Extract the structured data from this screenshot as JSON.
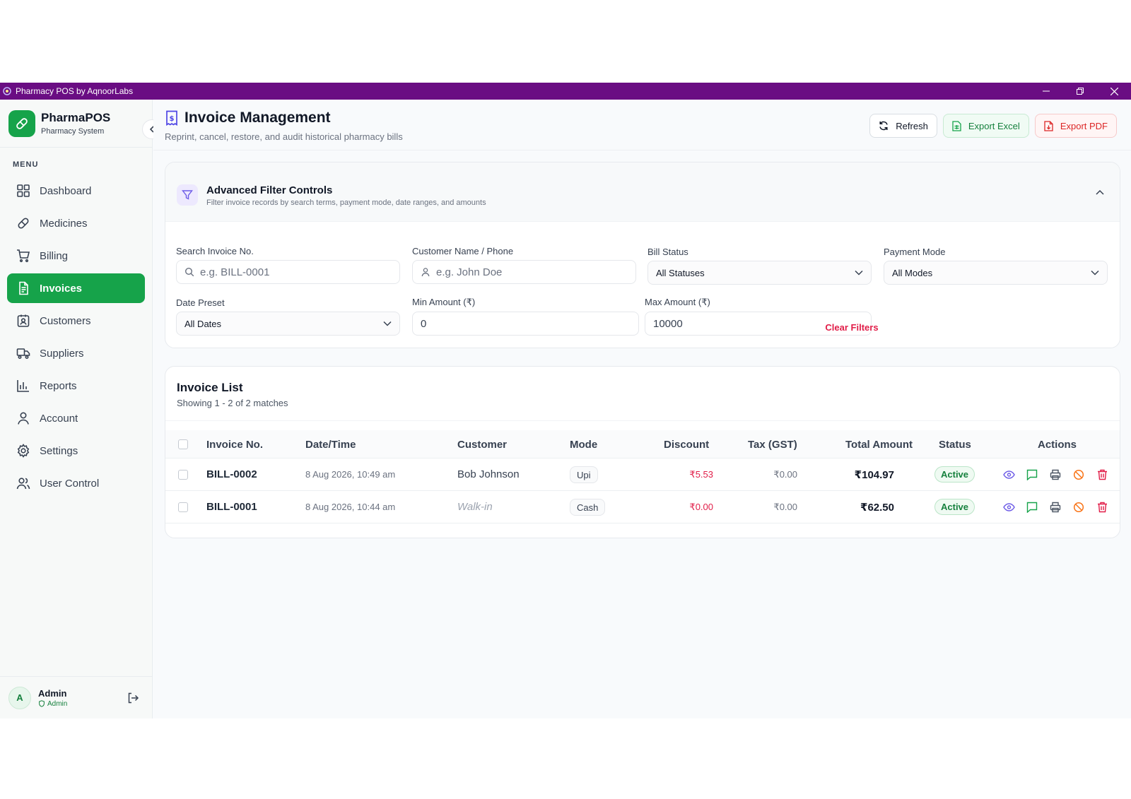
{
  "window": {
    "title": "Pharmacy POS by AqnoorLabs"
  },
  "brand": {
    "name": "PharmaPOS",
    "subtitle": "Pharmacy System"
  },
  "sidebar": {
    "menu_label": "MENU",
    "items": [
      {
        "label": "Dashboard",
        "icon": "grid-icon",
        "active": false
      },
      {
        "label": "Medicines",
        "icon": "pill-icon",
        "active": false
      },
      {
        "label": "Billing",
        "icon": "cart-icon",
        "active": false
      },
      {
        "label": "Invoices",
        "icon": "document-icon",
        "active": true
      },
      {
        "label": "Customers",
        "icon": "contact-icon",
        "active": false
      },
      {
        "label": "Suppliers",
        "icon": "truck-icon",
        "active": false
      },
      {
        "label": "Reports",
        "icon": "bar-chart-icon",
        "active": false
      },
      {
        "label": "Account",
        "icon": "user-icon",
        "active": false
      },
      {
        "label": "Settings",
        "icon": "gear-icon",
        "active": false
      },
      {
        "label": "User Control",
        "icon": "users-icon",
        "active": false
      }
    ]
  },
  "user": {
    "initial": "A",
    "name": "Admin",
    "role": "Admin"
  },
  "header": {
    "title": "Invoice Management",
    "subtitle": "Reprint, cancel, restore, and audit historical pharmacy bills",
    "refresh_label": "Refresh",
    "export_excel_label": "Export Excel",
    "export_pdf_label": "Export PDF"
  },
  "filters": {
    "title": "Advanced Filter Controls",
    "subtitle": "Filter invoice records by search terms, payment mode, date ranges, and amounts",
    "search_invoice": {
      "label": "Search Invoice No.",
      "placeholder": "e.g. BILL-0001"
    },
    "customer": {
      "label": "Customer Name / Phone",
      "placeholder": "e.g. John Doe"
    },
    "bill_status": {
      "label": "Bill Status",
      "value": "All Statuses"
    },
    "payment_mode": {
      "label": "Payment Mode",
      "value": "All Modes"
    },
    "date_preset": {
      "label": "Date Preset",
      "value": "All Dates"
    },
    "min_amount": {
      "label": "Min Amount (₹)",
      "value": "0"
    },
    "max_amount": {
      "label": "Max Amount (₹)",
      "value": "10000"
    },
    "clear_label": "Clear Filters"
  },
  "invoice_list": {
    "title": "Invoice List",
    "subtitle": "Showing 1 - 2 of 2 matches",
    "columns": [
      "Invoice No.",
      "Date/Time",
      "Customer",
      "Mode",
      "Discount",
      "Tax (GST)",
      "Total Amount",
      "Status",
      "Actions"
    ],
    "rows": [
      {
        "invoice_no": "BILL-0002",
        "datetime": "8 Aug 2026, 10:49 am",
        "customer": "Bob Johnson",
        "walk_in": false,
        "mode": "Upi",
        "discount": "₹5.53",
        "tax": "₹0.00",
        "total": "₹104.97",
        "status": "Active"
      },
      {
        "invoice_no": "BILL-0001",
        "datetime": "8 Aug 2026, 10:44 am",
        "customer": "Walk-in",
        "walk_in": true,
        "mode": "Cash",
        "discount": "₹0.00",
        "tax": "₹0.00",
        "total": "₹62.50",
        "status": "Active"
      }
    ]
  },
  "colors": {
    "titlebar": "#6a0d83",
    "primary_green": "#16a34a",
    "danger_red": "#e11d48",
    "view_purple": "#6d5ce7",
    "cancel_orange": "#f97316"
  }
}
